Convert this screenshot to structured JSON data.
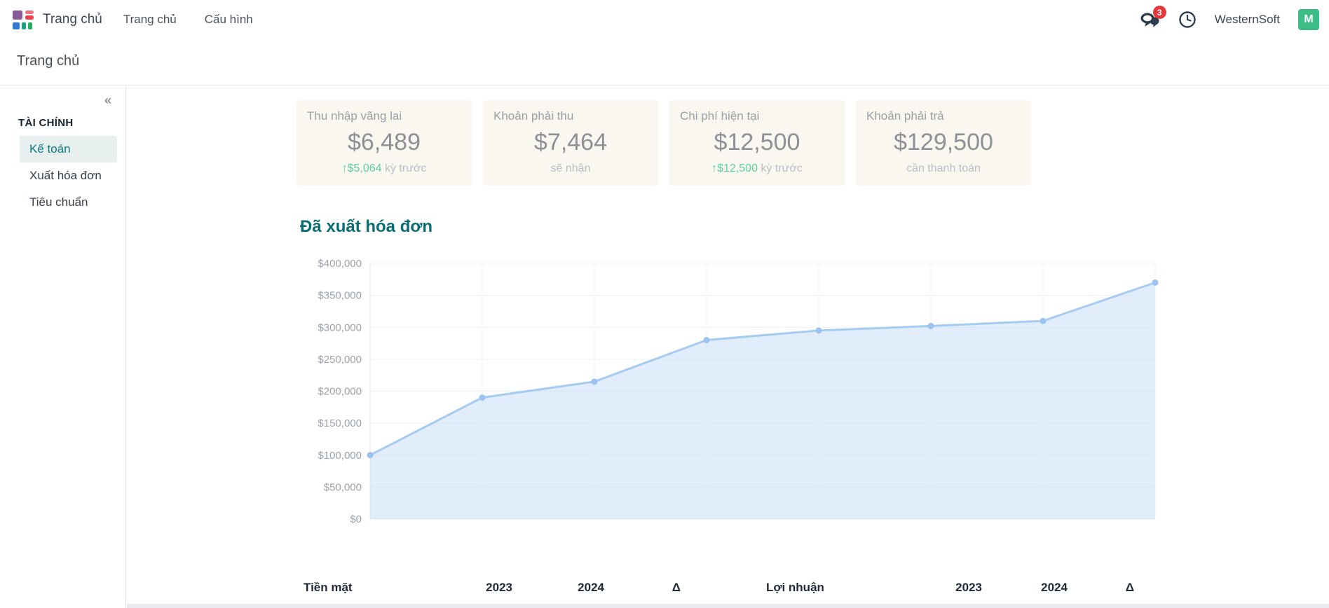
{
  "topbar": {
    "brand": "Trang chủ",
    "menu": [
      {
        "label": "Trang chủ"
      },
      {
        "label": "Cấu hình"
      }
    ],
    "messages_badge": "3",
    "company": "WesternSoft",
    "avatar_initial": "M",
    "colors": {
      "badge": "#e5383b",
      "avatar": "#3dbd86",
      "icon": "#2d3b4e"
    }
  },
  "breadcrumb": "Trang chủ",
  "sidebar": {
    "collapse_icon": "«",
    "section": "TÀI CHÍNH",
    "items": [
      {
        "label": "Kế toán"
      },
      {
        "label": "Xuất hóa đơn"
      },
      {
        "label": "Tiêu chuẩn"
      }
    ]
  },
  "kpis": [
    {
      "title": "Thu nhập vãng lai",
      "value": "$6,489",
      "change": "↑$5,064",
      "suffix": " kỳ trước"
    },
    {
      "title": "Khoản phải thu",
      "value": "$7,464",
      "change": "",
      "suffix": "sẽ nhận"
    },
    {
      "title": "Chi phí hiện tại",
      "value": "$12,500",
      "change": "↑$12,500",
      "suffix": " kỳ trước"
    },
    {
      "title": "Khoản phải trả",
      "value": "$129,500",
      "change": "",
      "suffix": "cần thanh toán"
    }
  ],
  "chart_data": {
    "type": "area",
    "title": "Đã xuất hóa đơn",
    "x": [
      1,
      2,
      3,
      4,
      5,
      6,
      7,
      8
    ],
    "x_tick_labels": [],
    "values": [
      100000,
      190000,
      215000,
      280000,
      295000,
      302000,
      310000,
      370000
    ],
    "ylim": [
      0,
      400000
    ],
    "y_tick_step": 50000,
    "y_tick_labels": [
      "$0",
      "$50,000",
      "$100,000",
      "$150,000",
      "$200,000",
      "$250,000",
      "$300,000",
      "$350,000",
      "$400,000"
    ],
    "grid": true,
    "legend": "none",
    "line_color": "#a6cbf0",
    "fill_color": "#c9def5",
    "point_color": "#9cc3ed"
  },
  "table": {
    "headers": [
      "Tiền mặt",
      "2023",
      "2024",
      "Δ",
      "Lợi nhuận",
      "2023",
      "2024",
      "Δ"
    ]
  }
}
